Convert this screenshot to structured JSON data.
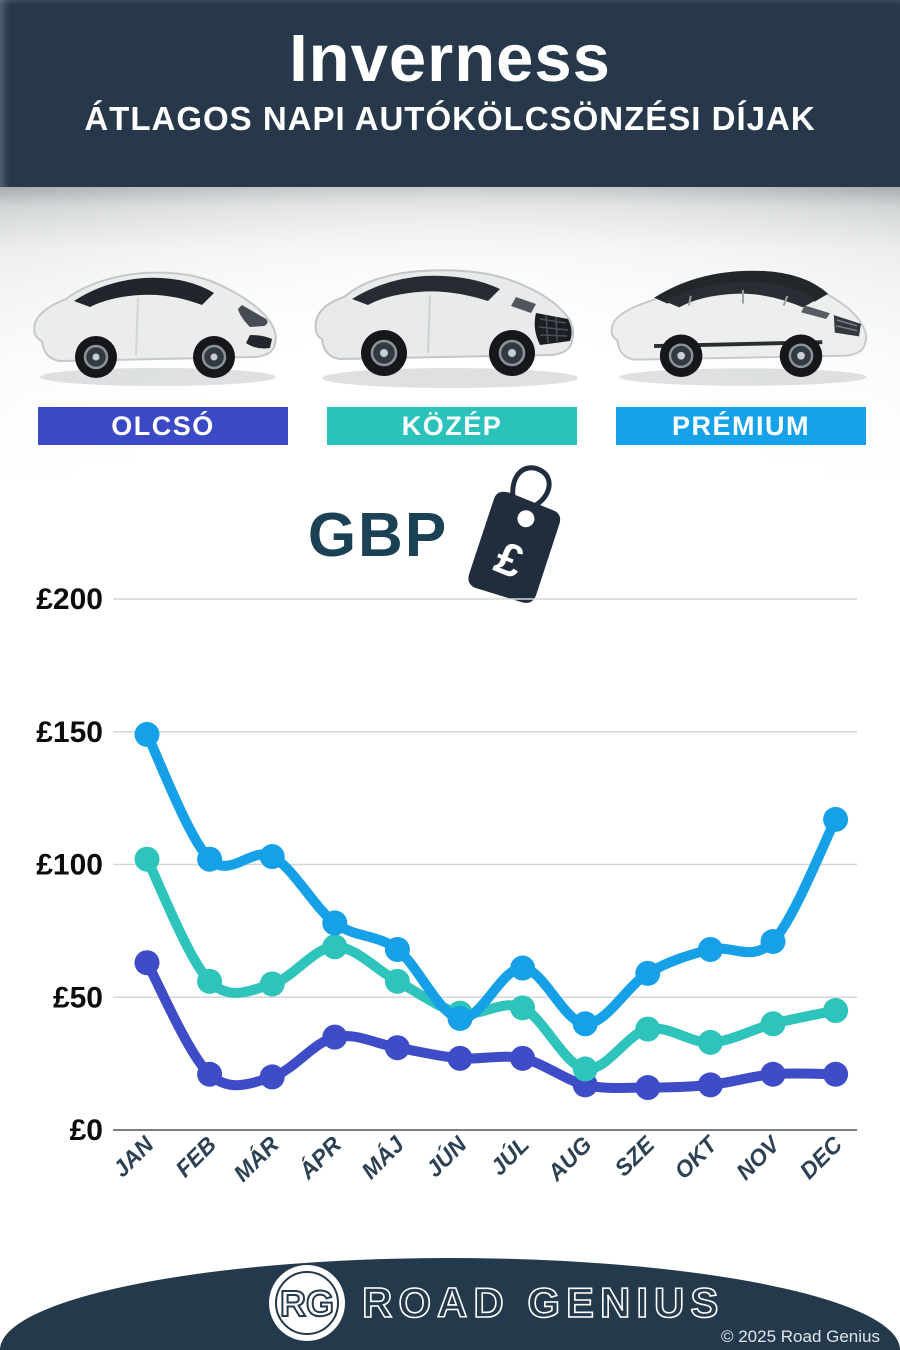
{
  "header": {
    "title": "Inverness",
    "subtitle": "ÁTLAGOS NAPI AUTÓKÖLCSÖNZÉSI DÍJAK"
  },
  "vehicle_classes": [
    {
      "label": "OLCSÓ",
      "color": "#3b49c6",
      "car": "economy-hatchback"
    },
    {
      "label": "KÖZÉP",
      "color": "#2bc2bb",
      "car": "midsize-suv"
    },
    {
      "label": "PRÉMIUM",
      "color": "#16a2e8",
      "car": "premium-suv"
    }
  ],
  "currency": {
    "code": "GBP",
    "symbol": "£"
  },
  "chart_data": {
    "type": "line",
    "title": "Inverness átlagos napi autókölcsönzési díjak (GBP)",
    "categories": [
      "JAN",
      "FEB",
      "MÁR",
      "ÁPR",
      "MÁJ",
      "JÚN",
      "JÚL",
      "AUG",
      "SZE",
      "OKT",
      "NOV",
      "DEC"
    ],
    "series": [
      {
        "name": "PRÉMIUM",
        "color": "#16a0e8",
        "values": [
          149,
          102,
          103,
          78,
          68,
          42,
          61,
          40,
          59,
          68,
          71,
          117
        ]
      },
      {
        "name": "KÖZÉP",
        "color": "#2ec4bc",
        "values": [
          102,
          56,
          55,
          69,
          56,
          44,
          46,
          23,
          38,
          33,
          40,
          45
        ]
      },
      {
        "name": "OLCSÓ",
        "color": "#3e4cc7",
        "values": [
          63,
          21,
          20,
          35,
          31,
          27,
          27,
          17,
          16,
          17,
          21,
          21
        ]
      }
    ],
    "yticks": [
      0,
      50,
      100,
      150,
      200
    ],
    "ylim": [
      0,
      200
    ],
    "y_prefix": "£",
    "grid": true,
    "legend_position": "badges-above-chart"
  },
  "footer": {
    "logo_initials": "RG",
    "brand": "ROAD GENIUS",
    "copyright": "© 2025 Road Genius"
  }
}
